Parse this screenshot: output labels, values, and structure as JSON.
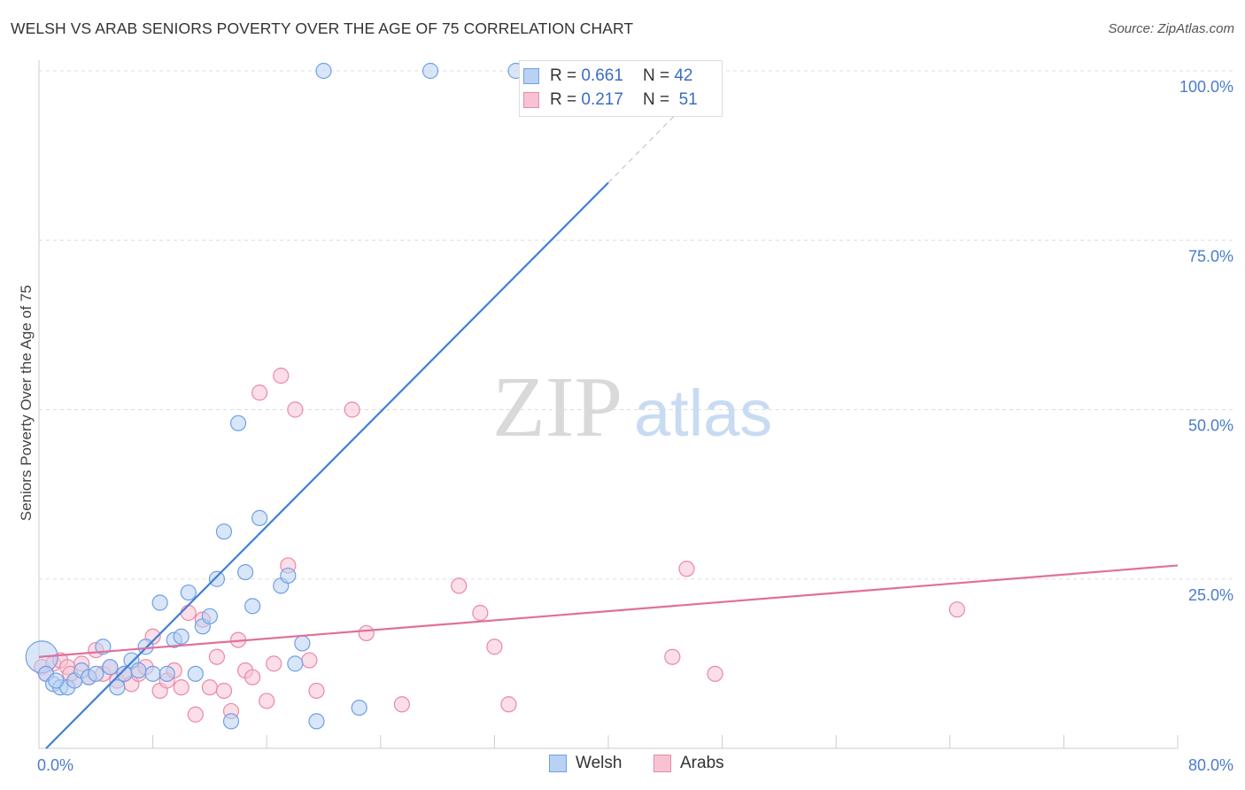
{
  "title": "WELSH VS ARAB SENIORS POVERTY OVER THE AGE OF 75 CORRELATION CHART",
  "source": "Source: ZipAtlas.com",
  "watermark": {
    "zip": "ZIP",
    "atlas": "atlas"
  },
  "legend": [
    {
      "r_label": "R =",
      "r_value": "0.661",
      "n_label": "N =",
      "n_value": "42",
      "color": "#6fa0e6",
      "fill": "#b9d1f3"
    },
    {
      "r_label": "R =",
      "r_value": "0.217",
      "n_label": "N =",
      "n_value": "51",
      "color": "#eb88a8",
      "fill": "#f7c3d3"
    }
  ],
  "bottom_legend": [
    {
      "label": "Welsh",
      "color": "#6fa0e6",
      "fill": "#b9d1f3"
    },
    {
      "label": "Arabs",
      "color": "#eb88a8",
      "fill": "#f7c3d3"
    }
  ],
  "chart_data": {
    "type": "scatter",
    "title": "WELSH VS ARAB SENIORS POVERTY OVER THE AGE OF 75 CORRELATION CHART",
    "xlabel": "",
    "ylabel": "Seniors Poverty Over the Age of 75",
    "xlim": [
      0,
      80
    ],
    "ylim": [
      0,
      100
    ],
    "x_tick_labels": [
      "0.0%",
      "80.0%"
    ],
    "y_ticks": [
      25,
      50,
      75,
      100
    ],
    "y_tick_labels": [
      "25.0%",
      "50.0%",
      "75.0%",
      "100.0%"
    ],
    "series": [
      {
        "name": "Welsh",
        "color": "#3f7fd8",
        "point_fill": "#b9d1f3",
        "point_stroke": "#6fa0e6",
        "r": 0.661,
        "n": 42,
        "trend": {
          "x": [
            0.5,
            40.0
          ],
          "y": [
            0.0,
            83.5
          ],
          "dash_x": [
            40.0,
            46.5
          ],
          "dash_y": [
            83.5,
            97.3
          ]
        },
        "points": [
          [
            0.2,
            13.5
          ],
          [
            0.5,
            11.0
          ],
          [
            1.0,
            9.5
          ],
          [
            1.5,
            9.0
          ],
          [
            2.0,
            9.0
          ],
          [
            2.5,
            10.0
          ],
          [
            3.0,
            11.5
          ],
          [
            3.5,
            10.5
          ],
          [
            4.0,
            11.0
          ],
          [
            4.5,
            15.0
          ],
          [
            5.0,
            12.0
          ],
          [
            5.5,
            9.0
          ],
          [
            6.0,
            11.0
          ],
          [
            6.5,
            13.0
          ],
          [
            7.0,
            11.5
          ],
          [
            7.5,
            15.0
          ],
          [
            8.0,
            11.0
          ],
          [
            8.5,
            21.5
          ],
          [
            9.0,
            11.0
          ],
          [
            9.5,
            16.0
          ],
          [
            10.0,
            16.5
          ],
          [
            10.5,
            23.0
          ],
          [
            11.0,
            11.0
          ],
          [
            11.5,
            18.0
          ],
          [
            12.0,
            19.5
          ],
          [
            12.5,
            25.0
          ],
          [
            13.0,
            32.0
          ],
          [
            13.5,
            4.0
          ],
          [
            14.0,
            48.0
          ],
          [
            14.5,
            26.0
          ],
          [
            15.0,
            21.0
          ],
          [
            15.5,
            34.0
          ],
          [
            17.0,
            24.0
          ],
          [
            17.5,
            25.5
          ],
          [
            18.0,
            12.5
          ],
          [
            18.5,
            15.5
          ],
          [
            19.5,
            4.0
          ],
          [
            20.0,
            100.0
          ],
          [
            22.5,
            6.0
          ],
          [
            27.5,
            100.0
          ],
          [
            33.5,
            100.0
          ],
          [
            1.2,
            10.0
          ]
        ]
      },
      {
        "name": "Arabs",
        "color": "#e0709a",
        "point_fill": "#f7c3d3",
        "point_stroke": "#eb88a8",
        "r": 0.217,
        "n": 51,
        "trend": {
          "x": [
            0,
            80
          ],
          "y": [
            13.5,
            27.0
          ]
        },
        "points": [
          [
            0.2,
            12.0
          ],
          [
            0.5,
            11.0
          ],
          [
            1.0,
            12.5
          ],
          [
            1.5,
            13.0
          ],
          [
            2.0,
            12.0
          ],
          [
            2.5,
            10.0
          ],
          [
            3.0,
            12.5
          ],
          [
            3.5,
            10.5
          ],
          [
            4.0,
            14.5
          ],
          [
            4.5,
            11.0
          ],
          [
            5.0,
            12.0
          ],
          [
            5.5,
            10.0
          ],
          [
            6.0,
            11.0
          ],
          [
            6.5,
            9.5
          ],
          [
            7.0,
            11.0
          ],
          [
            7.5,
            12.0
          ],
          [
            8.0,
            16.5
          ],
          [
            8.5,
            8.5
          ],
          [
            9.0,
            10.0
          ],
          [
            9.5,
            11.5
          ],
          [
            10.0,
            9.0
          ],
          [
            10.5,
            20.0
          ],
          [
            11.0,
            5.0
          ],
          [
            11.5,
            19.0
          ],
          [
            12.0,
            9.0
          ],
          [
            12.5,
            13.5
          ],
          [
            13.0,
            8.5
          ],
          [
            13.5,
            5.5
          ],
          [
            14.0,
            16.0
          ],
          [
            14.5,
            11.5
          ],
          [
            15.0,
            10.5
          ],
          [
            15.5,
            52.5
          ],
          [
            16.0,
            7.0
          ],
          [
            16.5,
            12.5
          ],
          [
            17.0,
            55.0
          ],
          [
            17.5,
            27.0
          ],
          [
            18.0,
            50.0
          ],
          [
            19.0,
            13.0
          ],
          [
            19.5,
            8.5
          ],
          [
            22.0,
            50.0
          ],
          [
            23.0,
            17.0
          ],
          [
            25.5,
            6.5
          ],
          [
            29.5,
            24.0
          ],
          [
            31.0,
            20.0
          ],
          [
            32.0,
            15.0
          ],
          [
            33.0,
            6.5
          ],
          [
            44.5,
            13.5
          ],
          [
            45.5,
            26.5
          ],
          [
            47.5,
            11.0
          ],
          [
            64.5,
            20.5
          ],
          [
            2.2,
            11.0
          ]
        ]
      }
    ]
  }
}
